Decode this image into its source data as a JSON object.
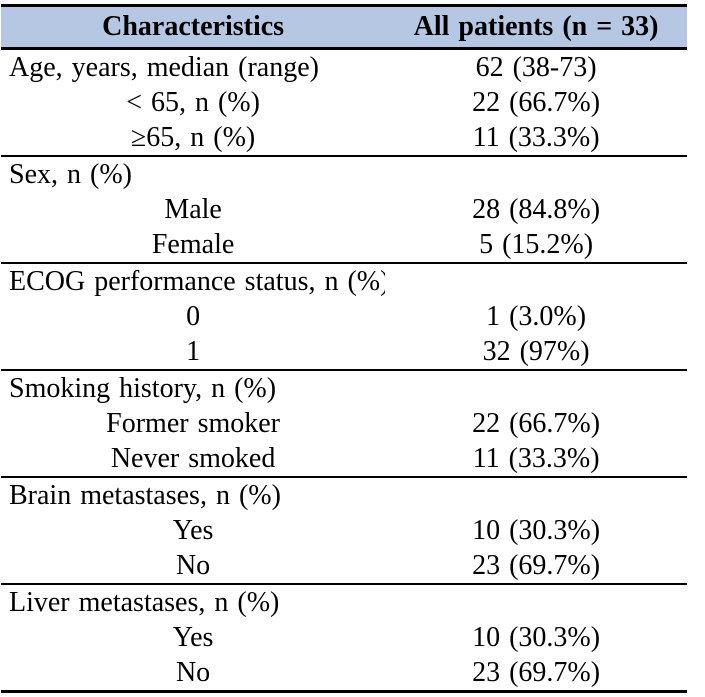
{
  "colors": {
    "header_background": "#b5c7e3",
    "border": "#000000",
    "text": "#000000",
    "page_background": "#ffffff"
  },
  "table": {
    "header": {
      "col1": "Characteristics",
      "col2": "All patients (n = 33)"
    },
    "sections": [
      {
        "rows": [
          {
            "label": "Age, years, median (range)",
            "value": "62 (38-73)",
            "align": "left"
          },
          {
            "label": "< 65, n (%)",
            "value": "22 (66.7%)",
            "align": "center"
          },
          {
            "label": "≥65, n (%)",
            "value": "11 (33.3%)",
            "align": "center"
          }
        ]
      },
      {
        "rows": [
          {
            "label": "Sex, n (%)",
            "value": "",
            "align": "left"
          },
          {
            "label": "Male",
            "value": "28 (84.8%)",
            "align": "center"
          },
          {
            "label": "Female",
            "value": "5 (15.2%)",
            "align": "center"
          }
        ]
      },
      {
        "rows": [
          {
            "label": "ECOG performance status, n (%)",
            "value": "",
            "align": "left"
          },
          {
            "label": "0",
            "value": "1 (3.0%)",
            "align": "center"
          },
          {
            "label": "1",
            "value": "32 (97%)",
            "align": "center"
          }
        ]
      },
      {
        "rows": [
          {
            "label": "Smoking history, n (%)",
            "value": "",
            "align": "left"
          },
          {
            "label": "Former smoker",
            "value": "22 (66.7%)",
            "align": "center"
          },
          {
            "label": "Never smoked",
            "value": "11 (33.3%)",
            "align": "center"
          }
        ]
      },
      {
        "rows": [
          {
            "label": "Brain metastases, n (%)",
            "value": "",
            "align": "left"
          },
          {
            "label": "Yes",
            "value": "10 (30.3%)",
            "align": "center"
          },
          {
            "label": "No",
            "value": "23 (69.7%)",
            "align": "center"
          }
        ]
      },
      {
        "rows": [
          {
            "label": "Liver metastases, n (%)",
            "value": "",
            "align": "left"
          },
          {
            "label": "Yes",
            "value": "10 (30.3%)",
            "align": "center"
          },
          {
            "label": "No",
            "value": "23 (69.7%)",
            "align": "center"
          }
        ]
      }
    ]
  }
}
